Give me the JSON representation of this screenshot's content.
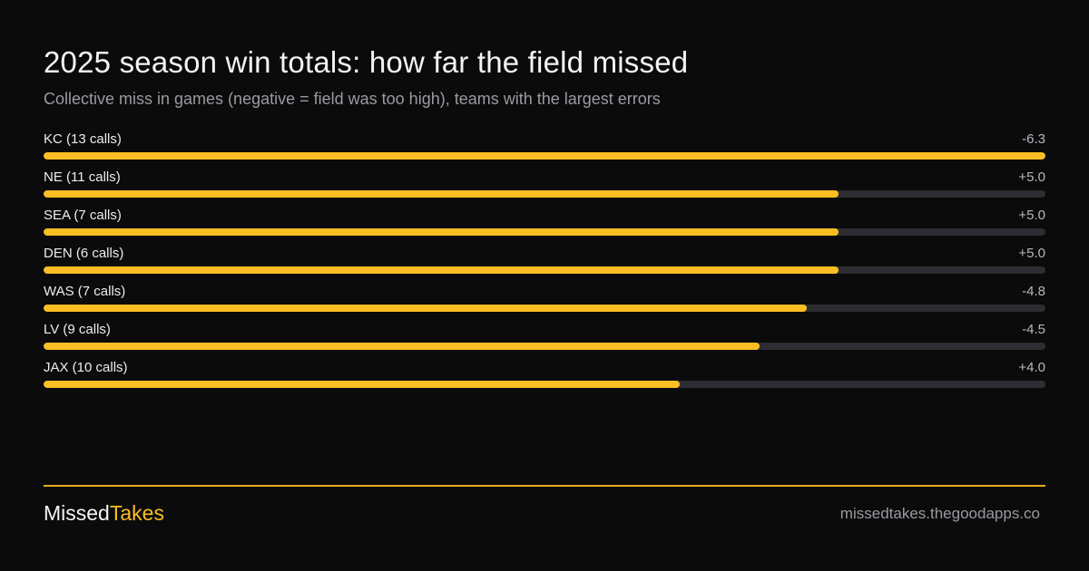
{
  "header": {
    "title": "2025 season win totals: how far the field missed",
    "subtitle": "Collective miss in games (negative = field was too high), teams with the largest errors"
  },
  "chart_data": {
    "type": "bar",
    "title": "2025 season win totals: how far the field missed",
    "subtitle": "Collective miss in games (negative = field was too high), teams with the largest errors",
    "orientation": "horizontal",
    "categories": [
      "KC (13 calls)",
      "NE (11 calls)",
      "SEA (7 calls)",
      "DEN (6 calls)",
      "WAS  (7 calls)",
      "LV  (9 calls)",
      "JAX (10 calls)"
    ],
    "values": [
      -6.3,
      5.0,
      5.0,
      5.0,
      -4.8,
      -4.5,
      4.0
    ],
    "value_labels": [
      "-6.3",
      "+5.0",
      "+5.0",
      "+5.0",
      "-4.8",
      "-4.5",
      "+4.0"
    ],
    "bar_scale": "absolute value relative to largest miss (6.3)",
    "colors": {
      "bar": "#fbbf24",
      "track": "#2e2d33",
      "background": "#0b0b0b"
    }
  },
  "footer": {
    "brand_part1": "Missed",
    "brand_part2": "Takes",
    "site": "missedtakes.thegoodapps.co"
  }
}
